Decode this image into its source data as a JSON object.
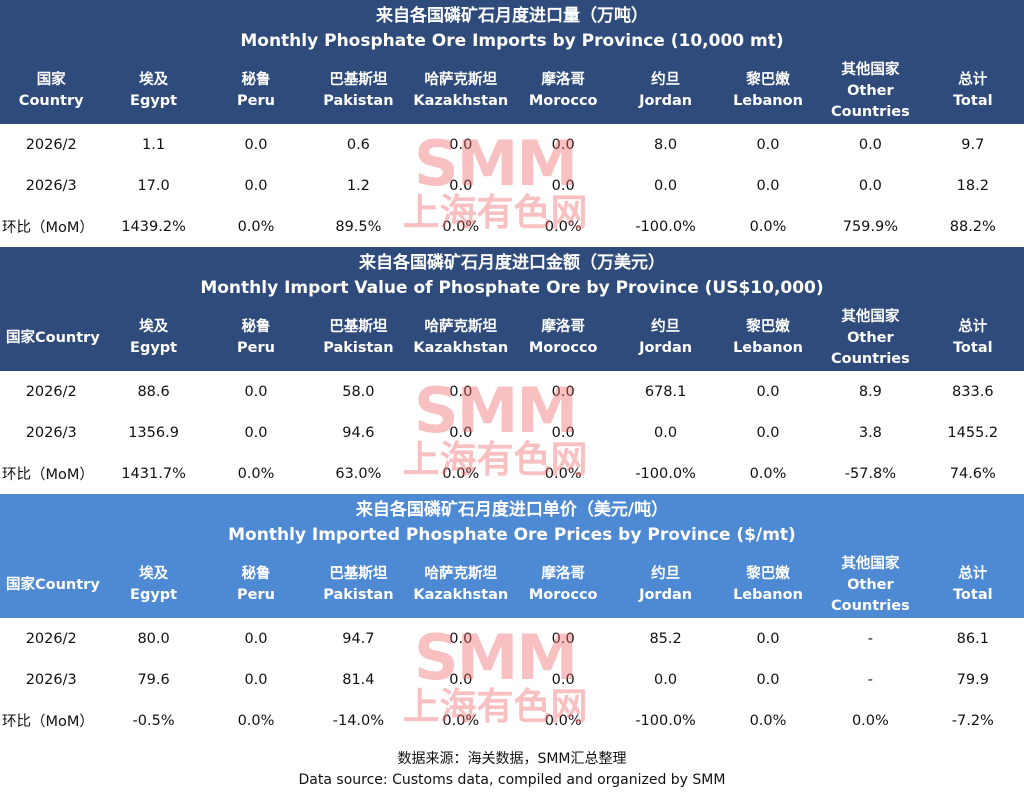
{
  "watermark": {
    "logo": "SMM",
    "name": "上海有色网"
  },
  "tables": [
    {
      "title_zh": "来自各国磷矿石月度进口量（万吨）",
      "title_en": "Monthly Phosphate Ore Imports by Province (10,000 mt)",
      "style": "dark",
      "columns": [
        [
          "国家",
          "Country"
        ],
        [
          "埃及",
          "Egypt"
        ],
        [
          "秘鲁",
          "Peru"
        ],
        [
          "巴基斯坦",
          "Pakistan"
        ],
        [
          "哈萨克斯坦",
          "Kazakhstan"
        ],
        [
          "摩洛哥",
          "Morocco"
        ],
        [
          "约旦",
          "Jordan"
        ],
        [
          "黎巴嫩",
          "Lebanon"
        ],
        [
          "其他国家",
          "Other",
          "Countries"
        ],
        [
          "总计",
          "Total"
        ]
      ],
      "rows": [
        [
          "2026/2",
          "1.1",
          "0.0",
          "0.6",
          "0.0",
          "0.0",
          "8.0",
          "0.0",
          "0.0",
          "9.7"
        ],
        [
          "2026/3",
          "17.0",
          "0.0",
          "1.2",
          "0.0",
          "0.0",
          "0.0",
          "0.0",
          "0.0",
          "18.2"
        ],
        [
          "环比（MoM）",
          "1439.2%",
          "0.0%",
          "89.5%",
          "0.0%",
          "0.0%",
          "-100.0%",
          "0.0%",
          "759.9%",
          "88.2%"
        ]
      ]
    },
    {
      "title_zh": "来自各国磷矿石月度进口金额（万美元）",
      "title_en": "Monthly Import Value of Phosphate Ore by Province (US$10,000)",
      "style": "dark",
      "columns": [
        [
          "国家Country"
        ],
        [
          "埃及",
          "Egypt"
        ],
        [
          "秘鲁",
          "Peru"
        ],
        [
          "巴基斯坦",
          "Pakistan"
        ],
        [
          "哈萨克斯坦",
          "Kazakhstan"
        ],
        [
          "摩洛哥",
          "Morocco"
        ],
        [
          "约旦",
          "Jordan"
        ],
        [
          "黎巴嫩",
          "Lebanon"
        ],
        [
          "其他国家",
          "Other",
          "Countries"
        ],
        [
          "总计",
          "Total"
        ]
      ],
      "rows": [
        [
          "2026/2",
          "88.6",
          "0.0",
          "58.0",
          "0.0",
          "0.0",
          "678.1",
          "0.0",
          "8.9",
          "833.6"
        ],
        [
          "2026/3",
          "1356.9",
          "0.0",
          "94.6",
          "0.0",
          "0.0",
          "0.0",
          "0.0",
          "3.8",
          "1455.2"
        ],
        [
          "环比（MoM）",
          "1431.7%",
          "0.0%",
          "63.0%",
          "0.0%",
          "0.0%",
          "-100.0%",
          "0.0%",
          "-57.8%",
          "74.6%"
        ]
      ]
    },
    {
      "title_zh": "来自各国磷矿石月度进口单价（美元/吨）",
      "title_en": "Monthly Imported Phosphate Ore Prices by Province ($/mt)",
      "style": "light",
      "columns": [
        [
          "国家Country"
        ],
        [
          "埃及",
          "Egypt"
        ],
        [
          "秘鲁",
          "Peru"
        ],
        [
          "巴基斯坦",
          "Pakistan"
        ],
        [
          "哈萨克斯坦",
          "Kazakhstan"
        ],
        [
          "摩洛哥",
          "Morocco"
        ],
        [
          "约旦",
          "Jordan"
        ],
        [
          "黎巴嫩",
          "Lebanon"
        ],
        [
          "其他国家",
          "Other",
          "Countries"
        ],
        [
          "总计",
          "Total"
        ]
      ],
      "rows": [
        [
          "2026/2",
          "80.0",
          "0.0",
          "94.7",
          "0.0",
          "0.0",
          "85.2",
          "0.0",
          "-",
          "86.1"
        ],
        [
          "2026/3",
          "79.6",
          "0.0",
          "81.4",
          "0.0",
          "0.0",
          "0.0",
          "0.0",
          "-",
          "79.9"
        ],
        [
          "环比（MoM）",
          "-0.5%",
          "0.0%",
          "-14.0%",
          "0.0%",
          "0.0%",
          "-100.0%",
          "0.0%",
          "0.0%",
          "-7.2%"
        ]
      ]
    }
  ],
  "footer": {
    "source_zh": "数据来源：海关数据，SMM汇总整理",
    "source_en": "Data source: Customs data, compiled and organized by SMM"
  }
}
